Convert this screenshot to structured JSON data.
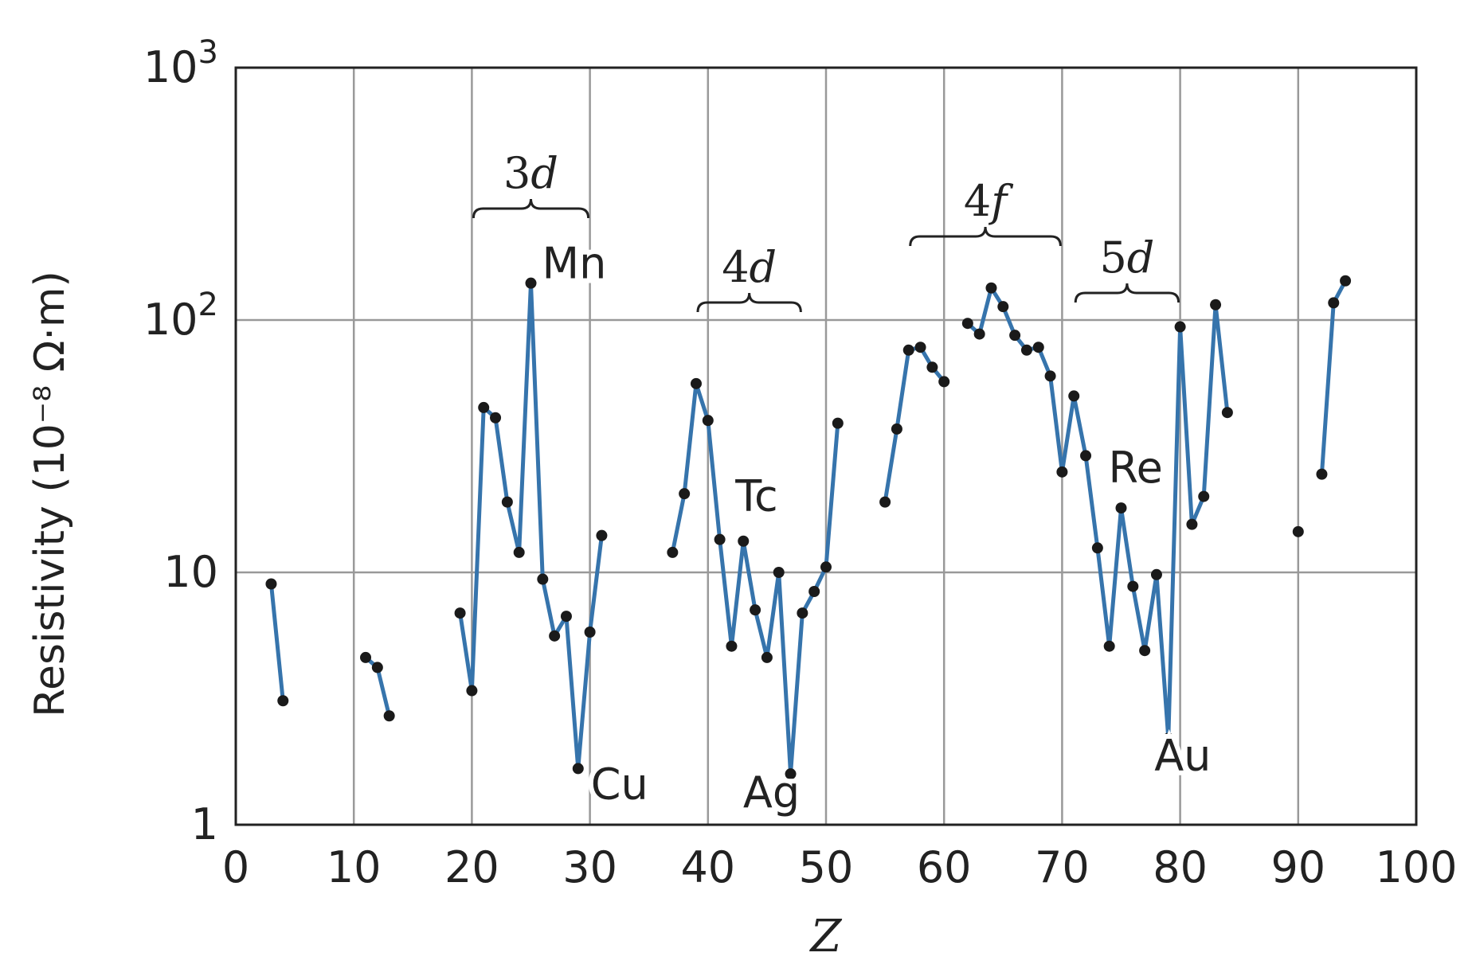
{
  "colors": {
    "line": "#3674ac",
    "marker": "#1a1a1a",
    "grid": "#999999",
    "frame": "#222222"
  },
  "chart_data": {
    "type": "line",
    "xlabel": "Z",
    "ylabel": "Resistivity (10⁻⁸ Ω·m)",
    "xlim": [
      0,
      100
    ],
    "ylim": [
      1,
      1000
    ],
    "yscale": "log",
    "grid": true,
    "xticks": [
      "0",
      "10",
      "20",
      "30",
      "40",
      "50",
      "60",
      "70",
      "80",
      "90",
      "100"
    ],
    "yticks": [
      {
        "value": 1,
        "label": "1",
        "sup": ""
      },
      {
        "value": 10,
        "label": "10",
        "sup": ""
      },
      {
        "value": 100,
        "label": "10",
        "sup": "2"
      },
      {
        "value": 1000,
        "label": "10",
        "sup": "3"
      }
    ],
    "segments": [
      [
        [
          3,
          9.0
        ],
        [
          4,
          3.1
        ]
      ],
      [
        [
          11,
          4.6
        ],
        [
          12,
          4.2
        ],
        [
          13,
          2.7
        ]
      ],
      [
        [
          19,
          6.9
        ],
        [
          20,
          3.4
        ],
        [
          21,
          45
        ],
        [
          22,
          41
        ],
        [
          23,
          19
        ],
        [
          24,
          12
        ],
        [
          25,
          140
        ],
        [
          26,
          9.4
        ],
        [
          27,
          5.6
        ],
        [
          28,
          6.7
        ],
        [
          29,
          1.67
        ],
        [
          30,
          5.8
        ],
        [
          31,
          14
        ]
      ],
      [
        [
          37,
          12
        ],
        [
          38,
          20.5
        ],
        [
          39,
          56
        ],
        [
          40,
          40
        ],
        [
          41,
          13.5
        ],
        [
          42,
          5.1
        ],
        [
          43,
          13.3
        ],
        [
          44,
          7.1
        ],
        [
          45,
          4.6
        ],
        [
          46,
          10
        ],
        [
          47,
          1.59
        ],
        [
          48,
          6.9
        ],
        [
          49,
          8.4
        ],
        [
          50,
          10.5
        ],
        [
          51,
          39
        ]
      ],
      [
        [
          55,
          19
        ],
        [
          56,
          37
        ],
        [
          57,
          76
        ],
        [
          58,
          78
        ],
        [
          59,
          65
        ],
        [
          60,
          57
        ]
      ],
      [
        [
          62,
          97
        ],
        [
          63,
          88
        ],
        [
          64,
          134
        ],
        [
          65,
          113
        ],
        [
          66,
          87
        ],
        [
          67,
          76
        ],
        [
          68,
          78
        ],
        [
          69,
          60
        ],
        [
          70,
          25
        ],
        [
          71,
          50
        ],
        [
          72,
          29
        ],
        [
          73,
          12.5
        ],
        [
          74,
          5.1
        ],
        [
          75,
          18
        ],
        [
          76,
          8.8
        ],
        [
          77,
          4.9
        ],
        [
          78,
          9.8
        ],
        [
          79,
          2.2
        ],
        [
          80,
          94
        ],
        [
          81,
          15.5
        ],
        [
          82,
          20
        ],
        [
          83,
          115
        ],
        [
          84,
          43
        ]
      ],
      [
        [
          90,
          14.5
        ]
      ],
      [
        [
          92,
          24.5
        ],
        [
          93,
          117
        ],
        [
          94,
          143
        ]
      ]
    ],
    "annotations": [
      {
        "text": "Mn",
        "x": 25,
        "y": 140
      },
      {
        "text": "Cu",
        "x": 29,
        "y": 1.67
      },
      {
        "text": "Tc",
        "x": 43,
        "y": 13.3
      },
      {
        "text": "Ag",
        "x": 47,
        "y": 1.59
      },
      {
        "text": "Re",
        "x": 75,
        "y": 18
      },
      {
        "text": "Au",
        "x": 79,
        "y": 2.2
      }
    ],
    "shells": [
      {
        "name": "3",
        "sub": "d",
        "x_start": 20,
        "x_end": 30
      },
      {
        "name": "4",
        "sub": "d",
        "x_start": 39,
        "x_end": 48
      },
      {
        "name": "4",
        "sub": "f",
        "x_start": 57,
        "x_end": 70
      },
      {
        "name": "5",
        "sub": "d",
        "x_start": 71,
        "x_end": 80
      }
    ]
  }
}
